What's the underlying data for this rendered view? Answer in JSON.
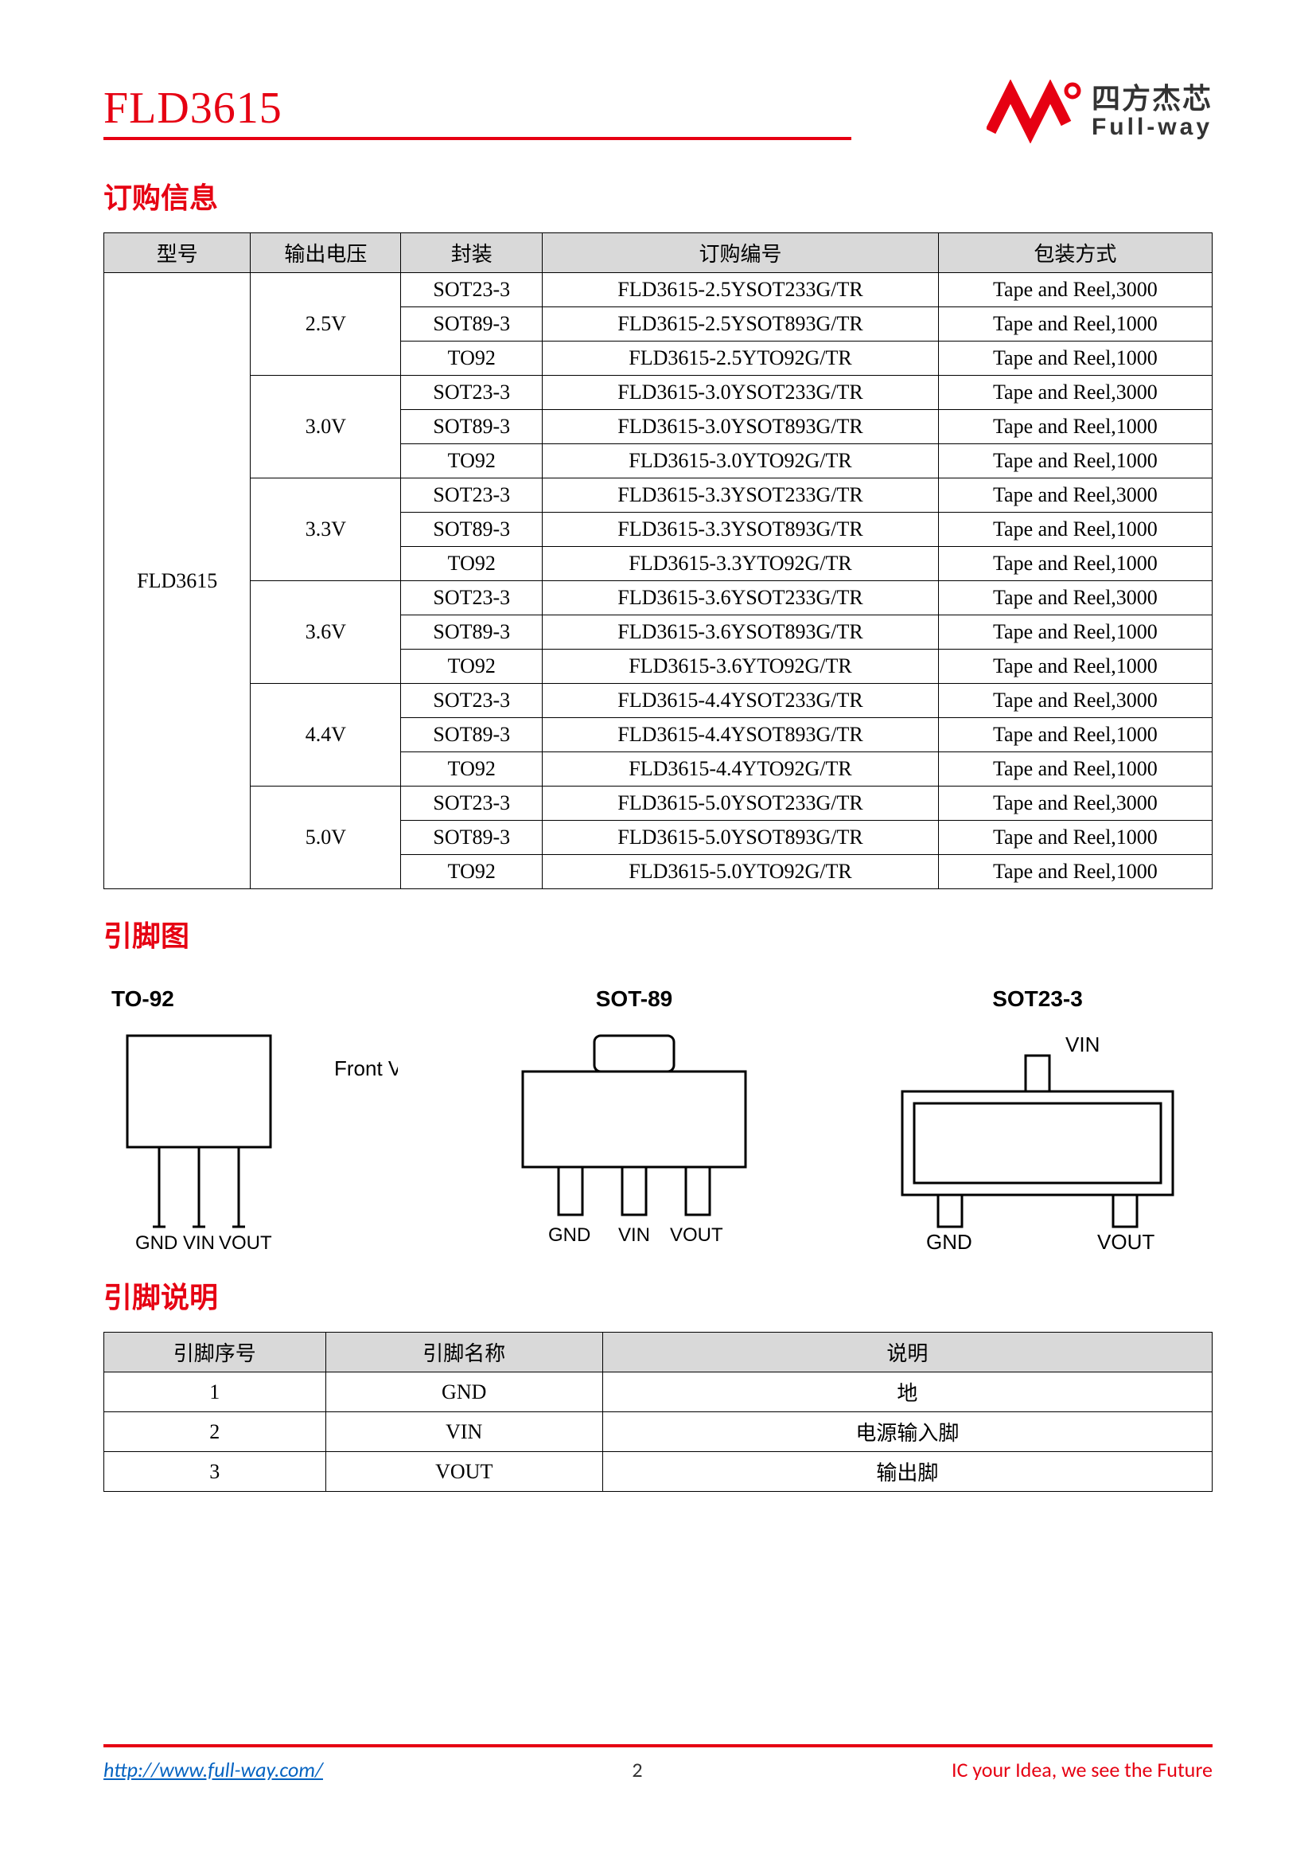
{
  "colors": {
    "brand_red": "#e60012",
    "header_bg": "#d9d9d9",
    "border": "#000000",
    "link": "#0563c1",
    "text": "#000000",
    "logo_text": "#333333"
  },
  "header": {
    "part_number": "FLD3615",
    "logo_cn": "四方杰芯",
    "logo_en": "Full-way"
  },
  "sections": {
    "ordering_title": "订购信息",
    "pinout_title": "引脚图",
    "pindesc_title": "引脚说明"
  },
  "ordering_table": {
    "headers": [
      "型号",
      "输出电压",
      "封装",
      "订购编号",
      "包装方式"
    ],
    "model": "FLD3615",
    "groups": [
      {
        "voltage": "2.5V",
        "rows": [
          {
            "package": "SOT23-3",
            "pn": "FLD3615-2.5YSOT233G/TR",
            "packing": "Tape and Reel,3000"
          },
          {
            "package": "SOT89-3",
            "pn": "FLD3615-2.5YSOT893G/TR",
            "packing": "Tape and Reel,1000"
          },
          {
            "package": "TO92",
            "pn": "FLD3615-2.5YTO92G/TR",
            "packing": "Tape and Reel,1000"
          }
        ]
      },
      {
        "voltage": "3.0V",
        "rows": [
          {
            "package": "SOT23-3",
            "pn": "FLD3615-3.0YSOT233G/TR",
            "packing": "Tape and Reel,3000"
          },
          {
            "package": "SOT89-3",
            "pn": "FLD3615-3.0YSOT893G/TR",
            "packing": "Tape and Reel,1000"
          },
          {
            "package": "TO92",
            "pn": "FLD3615-3.0YTO92G/TR",
            "packing": "Tape and Reel,1000"
          }
        ]
      },
      {
        "voltage": "3.3V",
        "rows": [
          {
            "package": "SOT23-3",
            "pn": "FLD3615-3.3YSOT233G/TR",
            "packing": "Tape and Reel,3000"
          },
          {
            "package": "SOT89-3",
            "pn": "FLD3615-3.3YSOT893G/TR",
            "packing": "Tape and Reel,1000"
          },
          {
            "package": "TO92",
            "pn": "FLD3615-3.3YTO92G/TR",
            "packing": "Tape and Reel,1000"
          }
        ]
      },
      {
        "voltage": "3.6V",
        "rows": [
          {
            "package": "SOT23-3",
            "pn": "FLD3615-3.6YSOT233G/TR",
            "packing": "Tape and Reel,3000"
          },
          {
            "package": "SOT89-3",
            "pn": "FLD3615-3.6YSOT893G/TR",
            "packing": "Tape and Reel,1000"
          },
          {
            "package": "TO92",
            "pn": "FLD3615-3.6YTO92G/TR",
            "packing": "Tape and Reel,1000"
          }
        ]
      },
      {
        "voltage": "4.4V",
        "rows": [
          {
            "package": "SOT23-3",
            "pn": "FLD3615-4.4YSOT233G/TR",
            "packing": "Tape and Reel,3000"
          },
          {
            "package": "SOT89-3",
            "pn": "FLD3615-4.4YSOT893G/TR",
            "packing": "Tape and Reel,1000"
          },
          {
            "package": "TO92",
            "pn": "FLD3615-4.4YTO92G/TR",
            "packing": "Tape and Reel,1000"
          }
        ]
      },
      {
        "voltage": "5.0V",
        "rows": [
          {
            "package": "SOT23-3",
            "pn": "FLD3615-5.0YSOT233G/TR",
            "packing": "Tape and Reel,3000"
          },
          {
            "package": "SOT89-3",
            "pn": "FLD3615-5.0YSOT893G/TR",
            "packing": "Tape and Reel,1000"
          },
          {
            "package": "TO92",
            "pn": "FLD3615-5.0YTO92G/TR",
            "packing": "Tape and Reel,1000"
          }
        ]
      }
    ]
  },
  "pinout": {
    "packages": [
      {
        "name": "TO-92",
        "front_view": "Front View",
        "pins": [
          "GND",
          "VIN",
          "VOUT"
        ]
      },
      {
        "name": "SOT-89",
        "pins": [
          "GND",
          "VIN",
          "VOUT"
        ]
      },
      {
        "name": "SOT23-3",
        "pins": {
          "top": "VIN",
          "left": "GND",
          "right": "VOUT"
        }
      }
    ]
  },
  "pin_table": {
    "headers": [
      "引脚序号",
      "引脚名称",
      "说明"
    ],
    "rows": [
      {
        "num": "1",
        "name": "GND",
        "desc": "地"
      },
      {
        "num": "2",
        "name": "VIN",
        "desc": "电源输入脚"
      },
      {
        "num": "3",
        "name": "VOUT",
        "desc": "输出脚"
      }
    ]
  },
  "footer": {
    "url": "http://www.full-way.com/",
    "page": "2",
    "tagline": "IC your Idea, we see the Future"
  }
}
